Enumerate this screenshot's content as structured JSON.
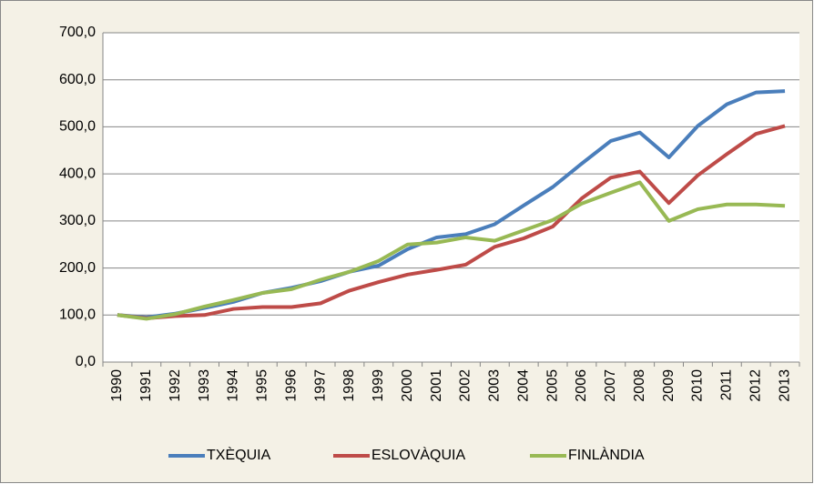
{
  "chart_data": {
    "type": "line",
    "categories": [
      "1990",
      "1991",
      "1992",
      "1993",
      "1994",
      "1995",
      "1996",
      "1997",
      "1998",
      "1999",
      "2000",
      "2001",
      "2002",
      "2003",
      "2004",
      "2005",
      "2006",
      "2007",
      "2008",
      "2009",
      "2010",
      "2011",
      "2012",
      "2013"
    ],
    "series": [
      {
        "name": "TXÈQUIA",
        "color": "#4a7ebb",
        "values": [
          100,
          95,
          103,
          115,
          128,
          147,
          158,
          172,
          192,
          205,
          240,
          265,
          272,
          293,
          333,
          372,
          422,
          470,
          488,
          435,
          502,
          548,
          573,
          576
        ]
      },
      {
        "name": "ESLOVÀQUIA",
        "color": "#be4b48",
        "values": [
          100,
          93,
          98,
          100,
          113,
          117,
          117,
          125,
          152,
          170,
          186,
          196,
          207,
          245,
          263,
          288,
          348,
          392,
          405,
          338,
          397,
          442,
          485,
          502
        ]
      },
      {
        "name": "FINLÀNDIA",
        "color": "#98b954",
        "values": [
          100,
          92,
          102,
          118,
          132,
          147,
          155,
          175,
          192,
          215,
          250,
          254,
          265,
          258,
          280,
          302,
          337,
          360,
          382,
          300,
          325,
          335,
          335,
          332
        ]
      }
    ],
    "ylim": [
      0,
      700
    ],
    "yticks": [
      {
        "value": 0,
        "label": "0,0"
      },
      {
        "value": 100,
        "label": "100,0"
      },
      {
        "value": 200,
        "label": "200,0"
      },
      {
        "value": 300,
        "label": "300,0"
      },
      {
        "value": 400,
        "label": "400,0"
      },
      {
        "value": 500,
        "label": "500,0"
      },
      {
        "value": 600,
        "label": "600,0"
      },
      {
        "value": 700,
        "label": "700,0"
      }
    ],
    "grid": true,
    "legend": "bottom"
  }
}
